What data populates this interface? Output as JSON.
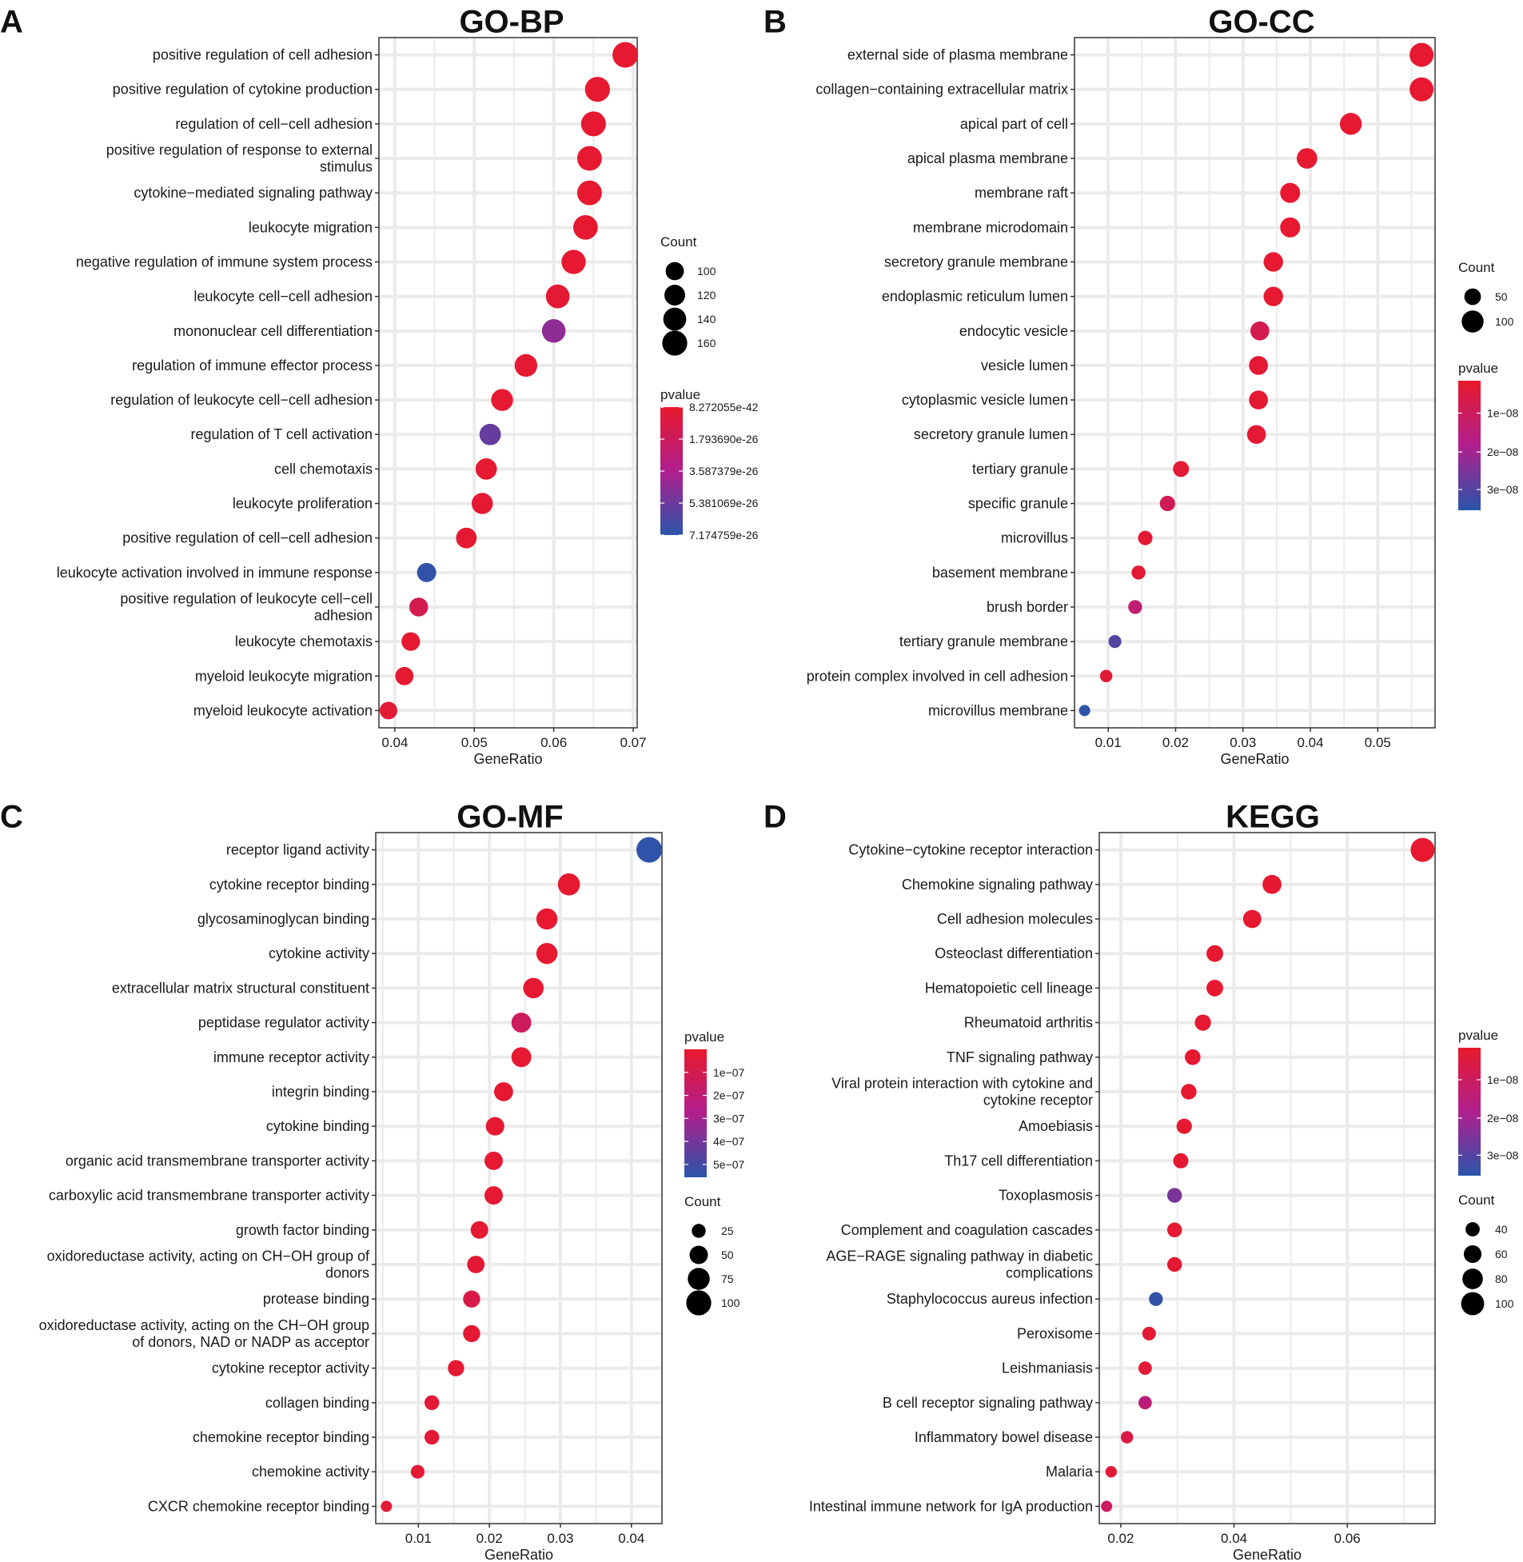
{
  "chart_data": [
    {
      "type": "scatter",
      "panel_letter": "A",
      "title": "GO-BP",
      "xlabel": "GeneRatio",
      "ylabel": "",
      "xlim": [
        0.038,
        0.0705
      ],
      "xticks": [
        0.04,
        0.05,
        0.06,
        0.07
      ],
      "xtick_labels": [
        "0.04",
        "0.05",
        "0.06",
        "0.07"
      ],
      "grid": true,
      "terms": [
        "positive regulation of cell adhesion",
        "positive regulation of cytokine production",
        "regulation of cell−cell adhesion",
        "positive regulation of response to external stimulus",
        "cytokine−mediated signaling pathway",
        "leukocyte migration",
        "negative regulation of immune system process",
        "leukocyte cell−cell adhesion",
        "mononuclear cell differentiation",
        "regulation of immune effector process",
        "regulation of leukocyte cell−cell adhesion",
        "regulation of T cell activation",
        "cell chemotaxis",
        "leukocyte proliferation",
        "positive regulation of cell−cell adhesion",
        "leukocyte activation involved in immune response",
        "positive regulation of leukocyte cell−cell adhesion",
        "leukocyte chemotaxis",
        "myeloid leukocyte migration",
        "myeloid leukocyte activation"
      ],
      "term_lines": [
        [
          "positive regulation of cell adhesion"
        ],
        [
          "positive regulation of cytokine production"
        ],
        [
          "regulation of cell−cell adhesion"
        ],
        [
          "positive regulation of response to external",
          "stimulus"
        ],
        [
          "cytokine−mediated signaling pathway"
        ],
        [
          "leukocyte migration"
        ],
        [
          "negative regulation of immune system process"
        ],
        [
          "leukocyte cell−cell adhesion"
        ],
        [
          "mononuclear cell differentiation"
        ],
        [
          "regulation of immune effector process"
        ],
        [
          "regulation of leukocyte cell−cell adhesion"
        ],
        [
          "regulation of T cell activation"
        ],
        [
          "cell chemotaxis"
        ],
        [
          "leukocyte proliferation"
        ],
        [
          "positive regulation of cell−cell adhesion"
        ],
        [
          "leukocyte activation involved in immune response"
        ],
        [
          "positive regulation of leukocyte cell−cell",
          "adhesion"
        ],
        [
          "leukocyte chemotaxis"
        ],
        [
          "myeloid leukocyte migration"
        ],
        [
          "myeloid leukocyte activation"
        ]
      ],
      "gene_ratio": [
        0.069,
        0.0655,
        0.065,
        0.0645,
        0.0645,
        0.064,
        0.0625,
        0.0605,
        0.06,
        0.0565,
        0.0535,
        0.052,
        0.0515,
        0.051,
        0.049,
        0.044,
        0.043,
        0.042,
        0.0412,
        0.0392
      ],
      "count": [
        166,
        160,
        158,
        157,
        157,
        155,
        152,
        147,
        146,
        137,
        130,
        126,
        125,
        124,
        119,
        107,
        104,
        102,
        100,
        95
      ],
      "color_value": [
        0.02,
        0.02,
        0.02,
        0.02,
        0.02,
        0.02,
        0.02,
        0.04,
        0.62,
        0.03,
        0.03,
        0.78,
        0.03,
        0.03,
        0.03,
        0.97,
        0.18,
        0.03,
        0.03,
        0.05
      ],
      "size_legend": {
        "title": "Count",
        "values": [
          100,
          120,
          140,
          160
        ],
        "labels": [
          "100",
          "120",
          "140",
          "160"
        ]
      },
      "color_legend": {
        "title": "pvalue",
        "labels": [
          "8.272055e-42",
          "1.793690e-26",
          "3.587379e-26",
          "5.381069e-26",
          "7.174759e-26"
        ],
        "fractions": [
          0.0,
          0.25,
          0.5,
          0.75,
          1.0
        ]
      }
    },
    {
      "type": "scatter",
      "panel_letter": "B",
      "title": "GO-CC",
      "xlabel": "GeneRatio",
      "ylabel": "",
      "xlim": [
        0.005,
        0.0585
      ],
      "xticks": [
        0.01,
        0.02,
        0.03,
        0.04,
        0.05
      ],
      "xtick_labels": [
        "0.01",
        "0.02",
        "0.03",
        "0.04",
        "0.05"
      ],
      "grid": true,
      "terms": [
        "external side of plasma membrane",
        "collagen−containing extracellular matrix",
        "apical part of cell",
        "apical plasma membrane",
        "membrane raft",
        "membrane microdomain",
        "secretory granule membrane",
        "endoplasmic reticulum lumen",
        "endocytic vesicle",
        "vesicle lumen",
        "cytoplasmic vesicle lumen",
        "secretory granule lumen",
        "tertiary granule",
        "specific granule",
        "microvillus",
        "basement membrane",
        "brush border",
        "tertiary granule membrane",
        "protein complex involved in cell adhesion",
        "microvillus membrane"
      ],
      "term_lines": [
        [
          "external side of plasma membrane"
        ],
        [
          "collagen−containing extracellular matrix"
        ],
        [
          "apical part of cell"
        ],
        [
          "apical plasma membrane"
        ],
        [
          "membrane raft"
        ],
        [
          "membrane microdomain"
        ],
        [
          "secretory granule membrane"
        ],
        [
          "endoplasmic reticulum lumen"
        ],
        [
          "endocytic vesicle"
        ],
        [
          "vesicle lumen"
        ],
        [
          "cytoplasmic vesicle lumen"
        ],
        [
          "secretory granule lumen"
        ],
        [
          "tertiary granule"
        ],
        [
          "specific granule"
        ],
        [
          "microvillus"
        ],
        [
          "basement membrane"
        ],
        [
          "brush border"
        ],
        [
          "tertiary granule membrane"
        ],
        [
          "protein complex involved in cell adhesion"
        ],
        [
          "microvillus membrane"
        ]
      ],
      "gene_ratio": [
        0.0565,
        0.0565,
        0.046,
        0.0395,
        0.037,
        0.037,
        0.0345,
        0.0345,
        0.0325,
        0.0323,
        0.0323,
        0.032,
        0.0208,
        0.0188,
        0.0155,
        0.0145,
        0.014,
        0.011,
        0.0097,
        0.0065
      ],
      "count": [
        122,
        122,
        99,
        85,
        80,
        80,
        75,
        75,
        70,
        70,
        70,
        69,
        45,
        41,
        34,
        31,
        30,
        24,
        21,
        14
      ],
      "color_value": [
        0.02,
        0.02,
        0.02,
        0.02,
        0.02,
        0.02,
        0.02,
        0.02,
        0.18,
        0.04,
        0.04,
        0.04,
        0.05,
        0.22,
        0.04,
        0.05,
        0.35,
        0.85,
        0.06,
        0.98
      ],
      "size_legend": {
        "title": "Count",
        "values": [
          50,
          100
        ],
        "labels": [
          "50",
          "100"
        ]
      },
      "color_legend": {
        "title": "pvalue",
        "labels": [
          "1e−08",
          "2e−08",
          "3e−08"
        ],
        "fractions": [
          0.25,
          0.55,
          0.84
        ]
      }
    },
    {
      "type": "scatter",
      "panel_letter": "C",
      "title": "GO-MF",
      "xlabel": "GeneRatio",
      "ylabel": "",
      "xlim": [
        0.004,
        0.0443
      ],
      "xticks": [
        0.01,
        0.02,
        0.03,
        0.04
      ],
      "xtick_labels": [
        "0.01",
        "0.02",
        "0.03",
        "0.04"
      ],
      "grid": true,
      "terms": [
        "receptor ligand activity",
        "cytokine receptor binding",
        "glycosaminoglycan binding",
        "cytokine activity",
        "extracellular matrix structural constituent",
        "peptidase regulator activity",
        "immune receptor activity",
        "integrin binding",
        "cytokine binding",
        "organic acid transmembrane transporter activity",
        "carboxylic acid transmembrane transporter activity",
        "growth factor binding",
        "oxidoreductase activity, acting on CH−OH group of donors",
        "protease binding",
        "oxidoreductase activity, acting on the CH−OH group of donors, NAD or NADP as acceptor",
        "cytokine receptor activity",
        "collagen binding",
        "chemokine receptor binding",
        "chemokine activity",
        "CXCR chemokine receptor binding"
      ],
      "term_lines": [
        [
          "receptor ligand activity"
        ],
        [
          "cytokine receptor binding"
        ],
        [
          "glycosaminoglycan binding"
        ],
        [
          "cytokine activity"
        ],
        [
          "extracellular matrix structural constituent"
        ],
        [
          "peptidase regulator activity"
        ],
        [
          "immune receptor activity"
        ],
        [
          "integrin binding"
        ],
        [
          "cytokine binding"
        ],
        [
          "organic acid transmembrane transporter activity"
        ],
        [
          "carboxylic acid transmembrane transporter activity"
        ],
        [
          "growth factor binding"
        ],
        [
          "oxidoreductase activity, acting on CH−OH group of",
          "donors"
        ],
        [
          "protease binding"
        ],
        [
          "oxidoreductase activity, acting on the CH−OH group",
          "of donors, NAD or NADP as acceptor"
        ],
        [
          "cytokine receptor activity"
        ],
        [
          "collagen binding"
        ],
        [
          "chemokine receptor binding"
        ],
        [
          "chemokine activity"
        ],
        [
          "CXCR chemokine receptor binding"
        ]
      ],
      "gene_ratio": [
        0.0425,
        0.0312,
        0.0281,
        0.0281,
        0.0262,
        0.0245,
        0.0245,
        0.022,
        0.0208,
        0.0206,
        0.0206,
        0.0186,
        0.0181,
        0.0175,
        0.0175,
        0.0153,
        0.0119,
        0.0119,
        0.0099,
        0.0055
      ],
      "count": [
        105,
        76,
        69,
        69,
        64,
        60,
        60,
        54,
        51,
        50,
        50,
        45,
        44,
        42,
        42,
        37,
        29,
        29,
        24,
        13
      ],
      "color_value": [
        0.98,
        0.02,
        0.02,
        0.02,
        0.03,
        0.25,
        0.03,
        0.03,
        0.03,
        0.03,
        0.03,
        0.03,
        0.04,
        0.15,
        0.04,
        0.04,
        0.05,
        0.05,
        0.05,
        0.05
      ],
      "size_legend": {
        "title": "Count",
        "values": [
          25,
          50,
          75,
          100
        ],
        "labels": [
          "25",
          "50",
          "75",
          "100"
        ]
      },
      "color_legend": {
        "title": "pvalue",
        "labels": [
          "1e−07",
          "2e−07",
          "3e−07",
          "4e−07",
          "5e−07"
        ],
        "fractions": [
          0.18,
          0.36,
          0.54,
          0.72,
          0.9
        ]
      }
    },
    {
      "type": "scatter",
      "panel_letter": "D",
      "title": "KEGG",
      "xlabel": "GeneRatio",
      "ylabel": "",
      "xlim": [
        0.0162,
        0.0755
      ],
      "xticks": [
        0.02,
        0.04,
        0.06
      ],
      "xtick_labels": [
        "0.02",
        "0.04",
        "0.06"
      ],
      "grid": true,
      "terms": [
        "Cytokine−cytokine receptor interaction",
        "Chemokine signaling pathway",
        "Cell adhesion molecules",
        "Osteoclast differentiation",
        "Hematopoietic cell lineage",
        "Rheumatoid arthritis",
        "TNF signaling pathway",
        "Viral protein interaction with cytokine and cytokine receptor",
        "Amoebiasis",
        "Th17 cell differentiation",
        "Toxoplasmosis",
        "Complement and coagulation cascades",
        "AGE−RAGE signaling pathway in diabetic complications",
        "Staphylococcus aureus infection",
        "Peroxisome",
        "Leishmaniasis",
        "B cell receptor signaling pathway",
        "Inflammatory bowel disease",
        "Malaria",
        "Intestinal immune network for IgA production"
      ],
      "term_lines": [
        [
          "Cytokine−cytokine receptor interaction"
        ],
        [
          "Chemokine signaling pathway"
        ],
        [
          "Cell adhesion molecules"
        ],
        [
          "Osteoclast differentiation"
        ],
        [
          "Hematopoietic cell lineage"
        ],
        [
          "Rheumatoid arthritis"
        ],
        [
          "TNF signaling pathway"
        ],
        [
          "Viral protein interaction with cytokine and",
          "cytokine receptor"
        ],
        [
          "Amoebiasis"
        ],
        [
          "Th17 cell differentiation"
        ],
        [
          "Toxoplasmosis"
        ],
        [
          "Complement and coagulation cascades"
        ],
        [
          "AGE−RAGE signaling pathway in diabetic",
          "complications"
        ],
        [
          "Staphylococcus aureus infection"
        ],
        [
          "Peroxisome"
        ],
        [
          "Leishmaniasis"
        ],
        [
          "B cell receptor signaling pathway"
        ],
        [
          "Inflammatory bowel disease"
        ],
        [
          "Malaria"
        ],
        [
          "Intestinal immune network for IgA production"
        ]
      ],
      "gene_ratio": [
        0.0733,
        0.0467,
        0.0432,
        0.0366,
        0.0366,
        0.0345,
        0.0327,
        0.032,
        0.0312,
        0.0306,
        0.0295,
        0.0295,
        0.0295,
        0.0262,
        0.025,
        0.0243,
        0.0243,
        0.0211,
        0.0183,
        0.0175
      ],
      "count": [
        108,
        69,
        64,
        54,
        54,
        51,
        48,
        47,
        46,
        45,
        43,
        43,
        43,
        38,
        37,
        36,
        36,
        31,
        27,
        26
      ],
      "color_value": [
        0.02,
        0.02,
        0.02,
        0.02,
        0.02,
        0.02,
        0.02,
        0.02,
        0.02,
        0.03,
        0.7,
        0.04,
        0.04,
        0.97,
        0.05,
        0.06,
        0.4,
        0.12,
        0.06,
        0.28
      ],
      "size_legend": {
        "title": "Count",
        "values": [
          40,
          60,
          80,
          100
        ],
        "labels": [
          "40",
          "60",
          "80",
          "100"
        ]
      },
      "color_legend": {
        "title": "pvalue",
        "labels": [
          "1e−08",
          "2e−08",
          "3e−08"
        ],
        "fractions": [
          0.25,
          0.55,
          0.84
        ]
      }
    }
  ],
  "colors": {
    "high": "#E8192C",
    "mid": "#B01F8E",
    "low": "#2A55AA",
    "grid": "#EBEBEB",
    "frame": "#333333"
  }
}
